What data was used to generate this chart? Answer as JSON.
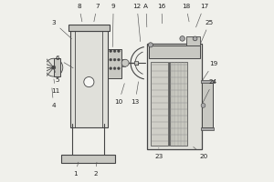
{
  "bg_color": "#f0f0eb",
  "lc": "#444444",
  "fc_light": "#e0e0da",
  "fc_mid": "#c8c8c2",
  "fc_dark": "#aaaaaa",
  "fc_white": "#f8f8f5"
}
